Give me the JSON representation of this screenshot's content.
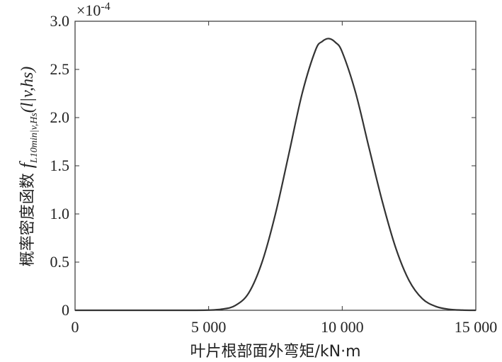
{
  "chart_data": {
    "type": "line",
    "title": "",
    "xlabel": "叶片根部面外弯矩/kN·m",
    "ylabel": "概率密度函数 f_{L10min|v,Hs}(l|v,hs)",
    "ylabel_parts": {
      "main": "概率密度函数 ",
      "f": "f",
      "sub": "L10min|v,Hs",
      "args": "(l|v,hs)"
    },
    "y_scale_label": "×10",
    "y_scale_exponent": "-4",
    "xlim": [
      0,
      15000
    ],
    "ylim": [
      0,
      3.0
    ],
    "x_ticks": [
      0,
      5000,
      10000,
      15000
    ],
    "x_tick_labels": [
      "0",
      "5 000",
      "10 000",
      "15 000"
    ],
    "y_ticks": [
      0,
      0.5,
      1.0,
      1.5,
      2.0,
      2.5,
      3.0
    ],
    "y_tick_labels": [
      "0",
      "0.5",
      "1.0",
      "1.5",
      "2.0",
      "2.5",
      "3.0"
    ],
    "grid": false,
    "legend": "none",
    "line_color": "#333333",
    "series": [
      {
        "x": [
          0,
          4000,
          5000,
          5500,
          6000,
          6500,
          7000,
          7500,
          8000,
          8500,
          9000,
          9250,
          9500,
          9750,
          10000,
          10500,
          11000,
          11500,
          12000,
          12500,
          13000,
          13500,
          14000,
          14500,
          15000
        ],
        "values": [
          0,
          0,
          0.002,
          0.012,
          0.05,
          0.18,
          0.5,
          1.0,
          1.62,
          2.25,
          2.7,
          2.79,
          2.82,
          2.78,
          2.68,
          2.26,
          1.69,
          1.13,
          0.65,
          0.31,
          0.12,
          0.04,
          0.01,
          0.002,
          0
        ]
      }
    ]
  }
}
